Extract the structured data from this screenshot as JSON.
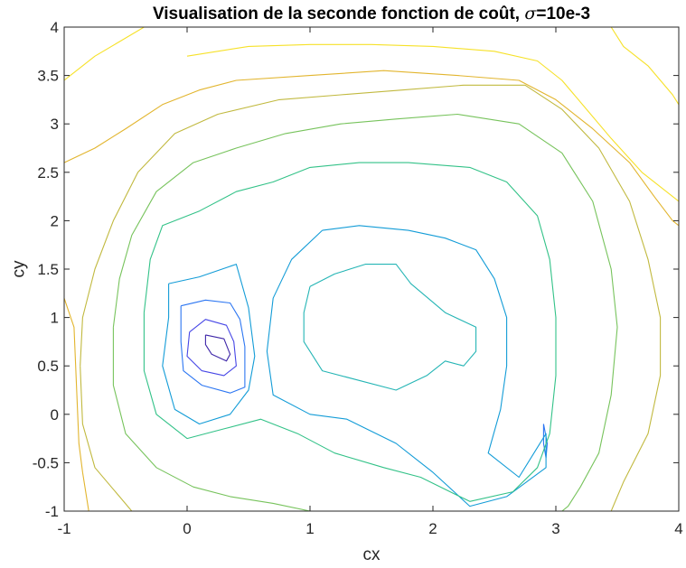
{
  "chart_data": {
    "type": "contour",
    "title_prefix": "Visualisation de la seconde fonction de coût, ",
    "title_symbol": "σ",
    "title_suffix": "=10e-3",
    "xlabel": "cx",
    "ylabel": "cy",
    "xlim": [
      -1,
      4
    ],
    "ylim": [
      -1,
      4
    ],
    "xticks": [
      -1,
      0,
      1,
      2,
      3,
      4
    ],
    "xtick_labels": [
      "-1",
      "0",
      "1",
      "2",
      "3",
      "4"
    ],
    "yticks": [
      -1,
      -0.5,
      0,
      0.5,
      1,
      1.5,
      2,
      2.5,
      3,
      3.5,
      4
    ],
    "ytick_labels": [
      "-1",
      "-0.5",
      "0",
      "0.5",
      "1",
      "1.5",
      "2",
      "2.5",
      "3",
      "3.5",
      "4"
    ],
    "grid": false,
    "colormap": "parula",
    "levels": [
      {
        "level": 1,
        "color": "#3e26a8",
        "contours": [
          [
            [
              0.15,
              0.82
            ],
            [
              0.3,
              0.78
            ],
            [
              0.35,
              0.62
            ],
            [
              0.32,
              0.55
            ],
            [
              0.2,
              0.62
            ],
            [
              0.15,
              0.72
            ],
            [
              0.15,
              0.82
            ]
          ]
        ]
      },
      {
        "level": 2,
        "color": "#4747e6",
        "contours": [
          [
            [
              0.02,
              0.85
            ],
            [
              0.15,
              0.98
            ],
            [
              0.32,
              0.92
            ],
            [
              0.38,
              0.75
            ],
            [
              0.4,
              0.5
            ],
            [
              0.3,
              0.4
            ],
            [
              0.12,
              0.45
            ],
            [
              0.0,
              0.6
            ],
            [
              0.02,
              0.85
            ]
          ]
        ]
      },
      {
        "level": 3,
        "color": "#2c76f2",
        "contours": [
          [
            [
              -0.05,
              1.12
            ],
            [
              0.15,
              1.18
            ],
            [
              0.35,
              1.15
            ],
            [
              0.43,
              0.98
            ],
            [
              0.47,
              0.7
            ],
            [
              0.47,
              0.28
            ],
            [
              0.35,
              0.22
            ],
            [
              0.12,
              0.3
            ],
            [
              -0.03,
              0.45
            ],
            [
              -0.05,
              0.75
            ],
            [
              -0.05,
              1.12
            ]
          ],
          [
            [
              2.9,
              -0.1
            ],
            [
              2.93,
              -0.3
            ],
            [
              2.92,
              -0.45
            ],
            [
              2.9,
              -0.3
            ],
            [
              2.9,
              -0.1
            ]
          ]
        ]
      },
      {
        "level": 4,
        "color": "#139cd7",
        "contours": [
          [
            [
              -0.15,
              1.35
            ],
            [
              0.1,
              1.42
            ],
            [
              0.4,
              1.55
            ],
            [
              0.5,
              1.1
            ],
            [
              0.55,
              0.6
            ],
            [
              0.5,
              0.25
            ],
            [
              0.35,
              0.0
            ],
            [
              0.1,
              -0.1
            ],
            [
              -0.1,
              0.05
            ],
            [
              -0.2,
              0.5
            ],
            [
              -0.15,
              1.0
            ],
            [
              -0.15,
              1.35
            ]
          ],
          [
            [
              1.1,
              1.9
            ],
            [
              1.4,
              1.95
            ],
            [
              1.8,
              1.9
            ],
            [
              2.1,
              1.82
            ],
            [
              2.35,
              1.7
            ],
            [
              2.5,
              1.4
            ],
            [
              2.6,
              1.0
            ],
            [
              2.6,
              0.5
            ],
            [
              2.55,
              0.05
            ],
            [
              2.45,
              -0.4
            ],
            [
              2.7,
              -0.65
            ],
            [
              2.92,
              -0.2
            ],
            [
              2.92,
              -0.55
            ],
            [
              2.6,
              -0.85
            ],
            [
              2.3,
              -0.95
            ],
            [
              2.0,
              -0.6
            ],
            [
              1.7,
              -0.3
            ],
            [
              1.3,
              -0.05
            ],
            [
              1.0,
              0.0
            ],
            [
              0.7,
              0.2
            ],
            [
              0.65,
              0.65
            ],
            [
              0.7,
              1.2
            ],
            [
              0.85,
              1.6
            ],
            [
              1.1,
              1.9
            ]
          ]
        ]
      },
      {
        "level": 5,
        "color": "#25b5b5",
        "contours": [
          [
            [
              1.0,
              1.32
            ],
            [
              1.2,
              1.45
            ],
            [
              1.45,
              1.55
            ],
            [
              1.7,
              1.55
            ],
            [
              1.82,
              1.35
            ],
            [
              2.1,
              1.05
            ],
            [
              2.35,
              0.9
            ],
            [
              2.35,
              0.65
            ],
            [
              2.25,
              0.5
            ],
            [
              2.1,
              0.55
            ],
            [
              1.95,
              0.4
            ],
            [
              1.7,
              0.25
            ],
            [
              1.4,
              0.35
            ],
            [
              1.1,
              0.45
            ],
            [
              0.95,
              0.75
            ],
            [
              0.95,
              1.05
            ],
            [
              1.0,
              1.32
            ]
          ]
        ]
      },
      {
        "level": 6,
        "color": "#33c288",
        "contours": [
          [
            [
              -0.35,
              1.05
            ],
            [
              -0.3,
              1.6
            ],
            [
              -0.2,
              1.95
            ],
            [
              0.1,
              2.1
            ],
            [
              0.4,
              2.3
            ],
            [
              0.7,
              2.4
            ],
            [
              1.0,
              2.55
            ],
            [
              1.4,
              2.6
            ],
            [
              1.8,
              2.6
            ],
            [
              2.3,
              2.55
            ],
            [
              2.6,
              2.4
            ],
            [
              2.85,
              2.05
            ],
            [
              2.95,
              1.6
            ],
            [
              3.0,
              1.0
            ],
            [
              3.0,
              0.4
            ],
            [
              2.95,
              -0.2
            ],
            [
              2.85,
              -0.55
            ],
            [
              2.65,
              -0.8
            ],
            [
              2.3,
              -0.9
            ],
            [
              1.9,
              -0.65
            ],
            [
              1.6,
              -0.55
            ],
            [
              1.2,
              -0.4
            ],
            [
              0.9,
              -0.2
            ],
            [
              0.6,
              -0.05
            ],
            [
              0.3,
              -0.15
            ],
            [
              0.0,
              -0.25
            ],
            [
              -0.25,
              0.0
            ],
            [
              -0.35,
              0.45
            ],
            [
              -0.35,
              1.05
            ]
          ]
        ]
      },
      {
        "level": 7,
        "color": "#77c35c",
        "contours": [
          [
            [
              -0.6,
              0.9
            ],
            [
              -0.55,
              1.4
            ],
            [
              -0.45,
              1.85
            ],
            [
              -0.25,
              2.3
            ],
            [
              0.05,
              2.6
            ],
            [
              0.4,
              2.75
            ],
            [
              0.8,
              2.9
            ],
            [
              1.25,
              3.0
            ],
            [
              1.7,
              3.05
            ],
            [
              2.2,
              3.1
            ],
            [
              2.7,
              3.0
            ],
            [
              3.05,
              2.7
            ],
            [
              3.3,
              2.2
            ],
            [
              3.45,
              1.5
            ],
            [
              3.5,
              0.9
            ],
            [
              3.45,
              0.2
            ],
            [
              3.35,
              -0.4
            ],
            [
              3.2,
              -0.75
            ],
            [
              3.1,
              -0.95
            ],
            [
              3.05,
              -1.0
            ]
          ],
          [
            [
              -0.6,
              0.9
            ],
            [
              -0.6,
              0.3
            ],
            [
              -0.5,
              -0.2
            ],
            [
              -0.25,
              -0.55
            ],
            [
              0.05,
              -0.75
            ],
            [
              0.35,
              -0.85
            ],
            [
              0.7,
              -0.92
            ],
            [
              1.0,
              -1.0
            ]
          ]
        ]
      },
      {
        "level": 8,
        "color": "#c1b93f",
        "contours": [
          [
            [
              -0.87,
              0.5
            ],
            [
              -0.85,
              1.0
            ],
            [
              -0.75,
              1.5
            ],
            [
              -0.6,
              2.0
            ],
            [
              -0.4,
              2.5
            ],
            [
              -0.1,
              2.9
            ],
            [
              0.25,
              3.1
            ],
            [
              0.75,
              3.25
            ],
            [
              1.25,
              3.3
            ],
            [
              1.75,
              3.35
            ],
            [
              2.25,
              3.4
            ],
            [
              2.75,
              3.4
            ],
            [
              3.05,
              3.15
            ],
            [
              3.35,
              2.75
            ],
            [
              3.6,
              2.2
            ],
            [
              3.75,
              1.6
            ],
            [
              3.85,
              1.0
            ],
            [
              3.85,
              0.4
            ],
            [
              3.75,
              -0.2
            ],
            [
              3.55,
              -0.7
            ],
            [
              3.45,
              -1.0
            ]
          ],
          [
            [
              -0.87,
              0.5
            ],
            [
              -0.85,
              -0.1
            ],
            [
              -0.75,
              -0.55
            ],
            [
              -0.55,
              -0.85
            ],
            [
              -0.45,
              -1.0
            ]
          ]
        ]
      },
      {
        "level": 9,
        "color": "#e2b52e",
        "contours": [
          [
            [
              -1.0,
              2.6
            ],
            [
              -0.75,
              2.75
            ],
            [
              -0.5,
              2.95
            ],
            [
              -0.2,
              3.2
            ],
            [
              0.1,
              3.35
            ],
            [
              0.4,
              3.45
            ],
            [
              1.0,
              3.5
            ],
            [
              1.6,
              3.55
            ],
            [
              2.2,
              3.5
            ],
            [
              2.7,
              3.45
            ],
            [
              3.0,
              3.25
            ],
            [
              3.3,
              2.95
            ],
            [
              3.6,
              2.6
            ],
            [
              3.8,
              2.25
            ],
            [
              3.95,
              2.0
            ],
            [
              4.0,
              1.95
            ]
          ],
          [
            [
              -1.0,
              1.2
            ],
            [
              -0.92,
              0.9
            ],
            [
              -0.9,
              0.3
            ],
            [
              -0.88,
              -0.3
            ],
            [
              -0.85,
              -0.6
            ],
            [
              -0.8,
              -1.0
            ]
          ]
        ]
      },
      {
        "level": 10,
        "color": "#f6e128",
        "contours": [
          [
            [
              -1.0,
              3.45
            ],
            [
              -0.75,
              3.7
            ],
            [
              -0.55,
              3.85
            ],
            [
              -0.35,
              4.0
            ]
          ],
          [
            [
              0.0,
              3.7
            ],
            [
              0.5,
              3.8
            ],
            [
              1.0,
              3.82
            ],
            [
              1.5,
              3.82
            ],
            [
              2.0,
              3.8
            ],
            [
              2.5,
              3.75
            ],
            [
              2.85,
              3.65
            ],
            [
              3.05,
              3.45
            ],
            [
              3.25,
              3.15
            ],
            [
              3.45,
              2.85
            ],
            [
              3.7,
              2.5
            ],
            [
              4.0,
              2.2
            ]
          ],
          [
            [
              3.45,
              4.0
            ],
            [
              3.55,
              3.8
            ],
            [
              3.75,
              3.6
            ],
            [
              3.95,
              3.3
            ],
            [
              4.0,
              3.2
            ]
          ]
        ]
      }
    ]
  }
}
